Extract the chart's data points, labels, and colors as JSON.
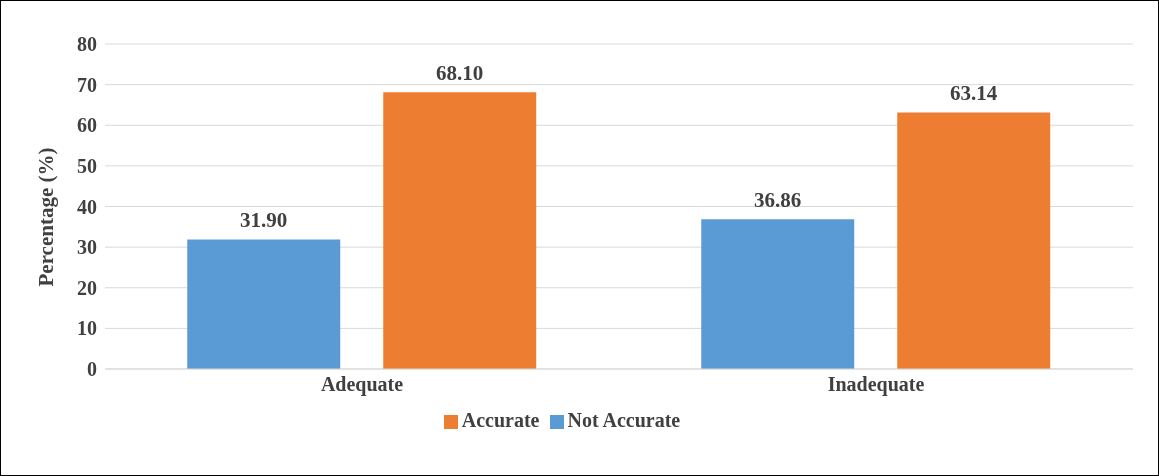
{
  "chart_data": {
    "type": "bar",
    "categories": [
      "Adequate",
      "Inadequate"
    ],
    "series": [
      {
        "name": "Not Accurate",
        "color": "#5b9bd5",
        "values": [
          31.9,
          36.86
        ],
        "value_labels": [
          "31.90",
          "36.86"
        ]
      },
      {
        "name": "Accurate",
        "color": "#ed7d31",
        "values": [
          68.1,
          63.14
        ],
        "value_labels": [
          "68.10",
          "63.14"
        ]
      }
    ],
    "ylabel": "Percentage (%)",
    "ylim": [
      0,
      80
    ],
    "yticks": [
      0,
      10,
      20,
      30,
      40,
      50,
      60,
      70,
      80
    ],
    "grid": "y",
    "legend": "bottom"
  }
}
